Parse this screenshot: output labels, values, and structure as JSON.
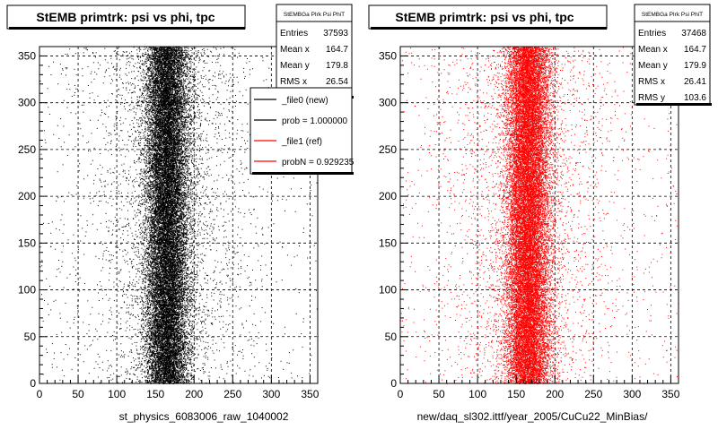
{
  "chart_data": [
    {
      "type": "scatter",
      "title": "StEMB primtrk: psi vs phi, tpc",
      "xlabel": "st_physics_6083006_raw_1040002",
      "ylabel": "",
      "xlim": [
        0,
        360
      ],
      "ylim": [
        0,
        360
      ],
      "x_ticks": [
        0,
        50,
        100,
        150,
        200,
        250,
        300,
        350
      ],
      "y_ticks": [
        0,
        50,
        100,
        150,
        200,
        250,
        300,
        350
      ],
      "grid": true,
      "point_color": "#000000",
      "band": {
        "x_center": 165,
        "x_sigma_core": 14,
        "rms_x": 26.54
      },
      "stats": {
        "header": "StEMBGa PIrk Psi PhiT",
        "rows": [
          {
            "label": "Entries",
            "value": "37593"
          },
          {
            "label": "Mean x",
            "value": "164.7"
          },
          {
            "label": "Mean y",
            "value": "179.8"
          },
          {
            "label": "RMS x",
            "value": "26.54"
          }
        ]
      },
      "legend": {
        "placement": "top-right",
        "entries": [
          {
            "label": "_file0 (new)",
            "color": "#000000"
          },
          {
            "label": "prob = 1.000000",
            "color": "#000000"
          },
          {
            "label": "_file1 (ref)",
            "color": "#ff0000"
          },
          {
            "label": "probN = 0.929235",
            "color": "#ff0000"
          }
        ]
      }
    },
    {
      "type": "scatter",
      "title": "StEMB primtrk: psi vs phi, tpc",
      "xlabel": "new/daq_sl302.ittf/year_2005/CuCu22_MinBias/",
      "ylabel": "",
      "xlim": [
        0,
        360
      ],
      "ylim": [
        0,
        360
      ],
      "x_ticks": [
        0,
        50,
        100,
        150,
        200,
        250,
        300,
        350
      ],
      "y_ticks": [
        0,
        50,
        100,
        150,
        200,
        250,
        300,
        350
      ],
      "grid": true,
      "point_color": "#ff0000",
      "band": {
        "x_center": 165,
        "x_sigma_core": 14,
        "rms_x": 26.41
      },
      "stats": {
        "header": "StEMBGa PIrk Psi PhiT",
        "rows": [
          {
            "label": "Entries",
            "value": "37468"
          },
          {
            "label": "Mean x",
            "value": "164.7"
          },
          {
            "label": "Mean y",
            "value": "179.9"
          },
          {
            "label": "RMS x",
            "value": "26.41"
          },
          {
            "label": "RMS y",
            "value": "103.6"
          }
        ]
      }
    }
  ]
}
